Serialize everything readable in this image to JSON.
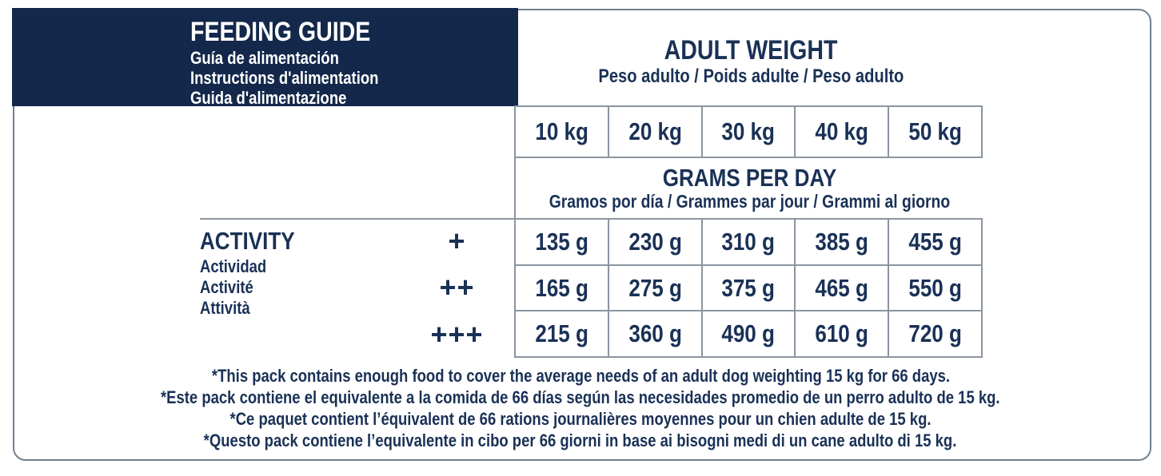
{
  "feeding_guide": {
    "title": "FEEDING GUIDE",
    "subtitles": [
      "Guía de alimentación",
      "Instructions d'alimentation",
      "Guida d'alimentazione"
    ]
  },
  "adult_weight": {
    "title": "ADULT WEIGHT",
    "subtitle": "Peso adulto / Poids adulte / Peso adulto"
  },
  "weights": [
    "10 kg",
    "20 kg",
    "30 kg",
    "40 kg",
    "50 kg"
  ],
  "grams_per_day": {
    "title": "GRAMS PER DAY",
    "subtitle": "Gramos por día / Grammes par jour / Grammi al giorno"
  },
  "activity": {
    "title": "ACTIVITY",
    "subtitles": [
      "Actividad",
      "Activité",
      "Attività"
    ]
  },
  "rows": [
    {
      "level": "+",
      "values": [
        "135 g",
        "230 g",
        "310 g",
        "385 g",
        "455 g"
      ]
    },
    {
      "level": "++",
      "values": [
        "165 g",
        "275 g",
        "375 g",
        "465 g",
        "550 g"
      ]
    },
    {
      "level": "+++",
      "values": [
        "215 g",
        "360 g",
        "490 g",
        "610 g",
        "720 g"
      ]
    }
  ],
  "footnotes": [
    "*This pack contains enough food to cover the average needs of an adult dog weighting 15 kg for 66 days.",
    "*Este pack contiene el equivalente a la comida de 66 días según las necesidades promedio de un perro adulto de 15 kg.",
    "*Ce paquet contient l’équivalent de 66 rations journalières moyennes pour un chien adulte de 15 kg.",
    "*Questo pack contiene l’equivalente in cibo per 66 giorni in base ai bisogni medi di un cane adulto di 15 kg."
  ],
  "colors": {
    "navy_box": "#13284a",
    "text_navy": "#1a3156",
    "grid_line": "#8a95a1",
    "frame_line": "#72808e"
  }
}
